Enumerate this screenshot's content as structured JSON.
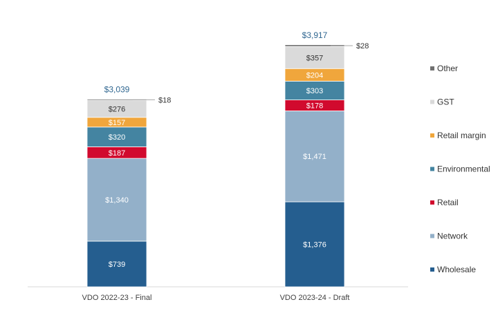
{
  "chart_data": {
    "type": "bar",
    "stacked": true,
    "categories": [
      "VDO 2022-23 - Final",
      "VDO 2023-24 - Draft"
    ],
    "series": [
      {
        "name": "Wholesale",
        "color": "#255e8f",
        "values": [
          739,
          1376
        ],
        "labels": [
          "$739",
          "$1,376"
        ]
      },
      {
        "name": "Network",
        "color": "#93b0c9",
        "values": [
          1340,
          1471
        ],
        "labels": [
          "$1,340",
          "$1,471"
        ]
      },
      {
        "name": "Retail",
        "color": "#d10a2e",
        "values": [
          187,
          178
        ],
        "labels": [
          "$187",
          "$178"
        ]
      },
      {
        "name": "Environmental",
        "color": "#4484a1",
        "values": [
          320,
          303
        ],
        "labels": [
          "$320",
          "$303"
        ]
      },
      {
        "name": "Retail margin",
        "color": "#f0a63c",
        "values": [
          157,
          204
        ],
        "labels": [
          "$157",
          "$204"
        ]
      },
      {
        "name": "GST",
        "color": "#dadada",
        "values": [
          276,
          357
        ],
        "labels": [
          "$276",
          "$357"
        ]
      },
      {
        "name": "Other",
        "color": "#707070",
        "values": [
          18,
          28
        ],
        "labels": [
          "$18",
          "$28"
        ]
      }
    ],
    "totals": [
      3039,
      3917
    ],
    "total_labels": [
      "$3,039",
      "$3,917"
    ],
    "legend_position": "right",
    "ylim": [
      0,
      4250
    ]
  }
}
